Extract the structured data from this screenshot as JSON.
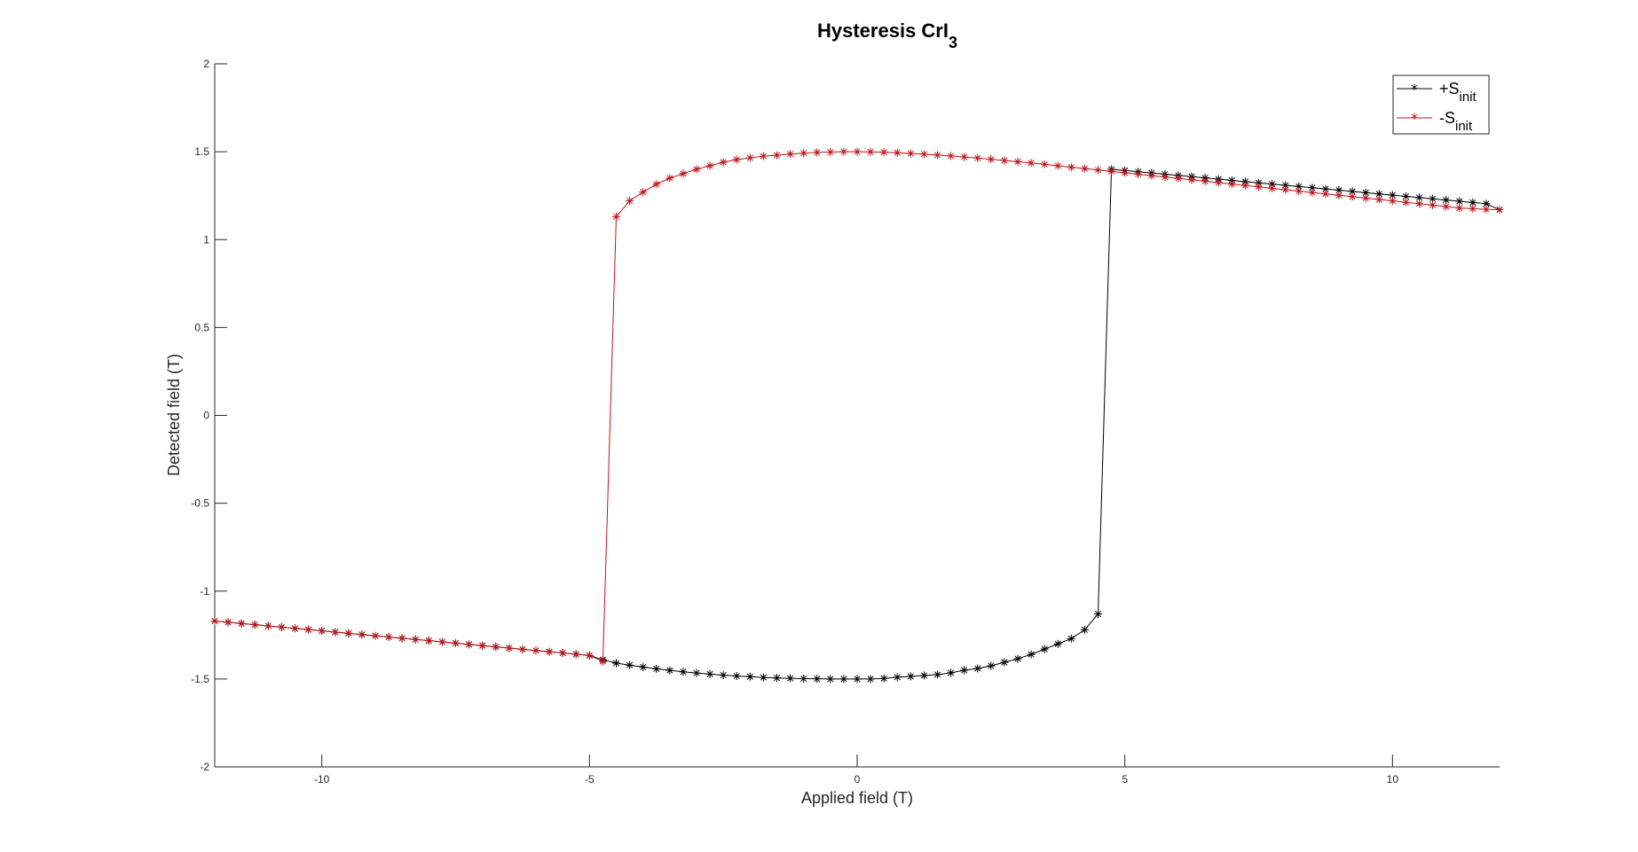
{
  "chart_data": {
    "type": "line",
    "title": "Hysteresis CrI",
    "title_subscript": "3",
    "xlabel": "Applied field (T)",
    "ylabel": "Detected field (T)",
    "xlim": [
      -12,
      12
    ],
    "ylim": [
      -2,
      2
    ],
    "x_ticks": [
      -10,
      -5,
      0,
      5,
      10
    ],
    "y_ticks": [
      -2,
      -1.5,
      -1,
      -0.5,
      0,
      0.5,
      1,
      1.5,
      2
    ],
    "grid": false,
    "legend_position": "top-right",
    "marker": "asterisk",
    "series": [
      {
        "name": "+S",
        "name_subscript": "init",
        "color": "#000000",
        "x": [
          -12,
          -11.75,
          -11.5,
          -11.25,
          -11,
          -10.75,
          -10.5,
          -10.25,
          -10,
          -9.75,
          -9.5,
          -9.25,
          -9,
          -8.75,
          -8.5,
          -8.25,
          -8,
          -7.75,
          -7.5,
          -7.25,
          -7,
          -6.75,
          -6.5,
          -6.25,
          -6,
          -5.75,
          -5.5,
          -5.25,
          -5,
          -4.75,
          -4.5,
          -4.25,
          -4,
          -3.75,
          -3.5,
          -3.25,
          -3,
          -2.75,
          -2.5,
          -2.25,
          -2,
          -1.75,
          -1.5,
          -1.25,
          -1,
          -0.75,
          -0.5,
          -0.25,
          0,
          0.25,
          0.5,
          0.75,
          1,
          1.25,
          1.5,
          1.75,
          2,
          2.25,
          2.5,
          2.75,
          3,
          3.25,
          3.5,
          3.75,
          4,
          4.25,
          4.5,
          4.75,
          5,
          5.25,
          5.5,
          5.75,
          6,
          6.25,
          6.5,
          6.75,
          7,
          7.25,
          7.5,
          7.75,
          8,
          8.25,
          8.5,
          8.75,
          9,
          9.25,
          9.5,
          9.75,
          10,
          10.25,
          10.5,
          10.75,
          11,
          11.25,
          11.5,
          11.75,
          12
        ],
        "y": [
          -1.17,
          -1.177,
          -1.184,
          -1.191,
          -1.198,
          -1.205,
          -1.212,
          -1.219,
          -1.226,
          -1.233,
          -1.24,
          -1.247,
          -1.254,
          -1.261,
          -1.268,
          -1.275,
          -1.282,
          -1.289,
          -1.296,
          -1.303,
          -1.31,
          -1.317,
          -1.324,
          -1.331,
          -1.338,
          -1.345,
          -1.352,
          -1.359,
          -1.366,
          -1.39,
          -1.41,
          -1.421,
          -1.432,
          -1.442,
          -1.451,
          -1.459,
          -1.466,
          -1.472,
          -1.478,
          -1.483,
          -1.487,
          -1.491,
          -1.494,
          -1.496,
          -1.498,
          -1.499,
          -1.5,
          -1.5,
          -1.5,
          -1.5,
          -1.497,
          -1.49,
          -1.485,
          -1.48,
          -1.475,
          -1.465,
          -1.45,
          -1.44,
          -1.425,
          -1.405,
          -1.385,
          -1.36,
          -1.33,
          -1.3,
          -1.27,
          -1.22,
          -1.13,
          1.4,
          1.393,
          1.386,
          1.379,
          1.372,
          1.365,
          1.358,
          1.351,
          1.344,
          1.337,
          1.33,
          1.323,
          1.316,
          1.309,
          1.302,
          1.295,
          1.288,
          1.281,
          1.274,
          1.267,
          1.26,
          1.253,
          1.246,
          1.239,
          1.232,
          1.225,
          1.218,
          1.211,
          1.204,
          1.17
        ]
      },
      {
        "name": "-S",
        "name_subscript": "init",
        "color": "#c0141b",
        "x": [
          -12,
          -11.75,
          -11.5,
          -11.25,
          -11,
          -10.75,
          -10.5,
          -10.25,
          -10,
          -9.75,
          -9.5,
          -9.25,
          -9,
          -8.75,
          -8.5,
          -8.25,
          -8,
          -7.75,
          -7.5,
          -7.25,
          -7,
          -6.75,
          -6.5,
          -6.25,
          -6,
          -5.75,
          -5.5,
          -5.25,
          -5,
          -4.75,
          -4.5,
          -4.25,
          -4,
          -3.75,
          -3.5,
          -3.25,
          -3,
          -2.75,
          -2.5,
          -2.25,
          -2,
          -1.75,
          -1.5,
          -1.25,
          -1,
          -0.75,
          -0.5,
          -0.25,
          0,
          0.25,
          0.5,
          0.75,
          1,
          1.25,
          1.5,
          1.75,
          2,
          2.25,
          2.5,
          2.75,
          3,
          3.25,
          3.5,
          3.75,
          4,
          4.25,
          4.5,
          4.75,
          5,
          5.25,
          5.5,
          5.75,
          6,
          6.25,
          6.5,
          6.75,
          7,
          7.25,
          7.5,
          7.75,
          8,
          8.25,
          8.5,
          8.75,
          9,
          9.25,
          9.5,
          9.75,
          10,
          10.25,
          10.5,
          10.75,
          11,
          11.25,
          11.5,
          11.75,
          12
        ],
        "y": [
          -1.17,
          -1.177,
          -1.184,
          -1.191,
          -1.198,
          -1.205,
          -1.212,
          -1.219,
          -1.226,
          -1.233,
          -1.24,
          -1.247,
          -1.254,
          -1.261,
          -1.268,
          -1.275,
          -1.282,
          -1.289,
          -1.296,
          -1.303,
          -1.31,
          -1.317,
          -1.324,
          -1.331,
          -1.338,
          -1.345,
          -1.352,
          -1.359,
          -1.366,
          -1.4,
          1.13,
          1.22,
          1.27,
          1.315,
          1.35,
          1.375,
          1.4,
          1.42,
          1.44,
          1.455,
          1.465,
          1.475,
          1.48,
          1.487,
          1.492,
          1.496,
          1.498,
          1.5,
          1.5,
          1.499,
          1.497,
          1.494,
          1.49,
          1.486,
          1.481,
          1.476,
          1.47,
          1.464,
          1.457,
          1.45,
          1.443,
          1.436,
          1.428,
          1.42,
          1.412,
          1.404,
          1.396,
          1.388,
          1.38,
          1.372,
          1.364,
          1.356,
          1.348,
          1.34,
          1.332,
          1.324,
          1.316,
          1.308,
          1.3,
          1.292,
          1.284,
          1.276,
          1.268,
          1.26,
          1.252,
          1.244,
          1.236,
          1.228,
          1.22,
          1.212,
          1.204,
          1.196,
          1.188,
          1.18,
          1.176,
          1.172,
          1.17
        ]
      }
    ]
  }
}
